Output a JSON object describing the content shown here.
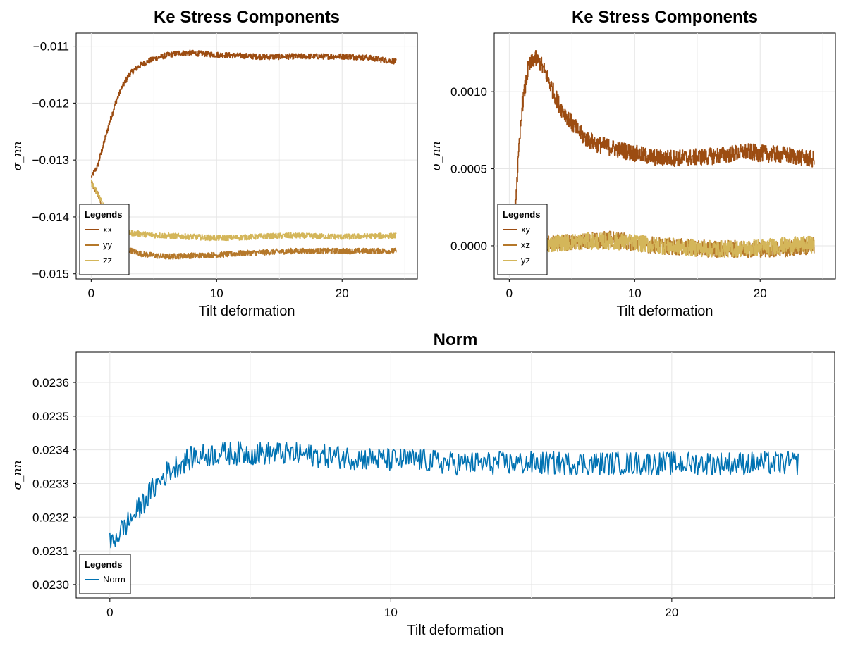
{
  "chart_data": [
    {
      "type": "line",
      "title": "Ke Stress Components",
      "xlabel": "Tilt deformation",
      "ylabel": "σ_nn",
      "xlim": [
        -1.2,
        26.0
      ],
      "ylim": [
        -0.01509,
        -0.01077
      ],
      "xticks": [
        0,
        10,
        20
      ],
      "xtick_labels": [
        "0",
        "10",
        "20"
      ],
      "yticks": [
        -0.015,
        -0.014,
        -0.013,
        -0.012,
        -0.011
      ],
      "ytick_labels": [
        "−0.015",
        "−0.014",
        "−0.013",
        "−0.012",
        "−0.011"
      ],
      "grid": true,
      "legend": {
        "title": "Legends",
        "position": "bottom-left"
      },
      "series": [
        {
          "name": "xx",
          "color": "#9c4c11",
          "x": [
            0,
            0.5,
            1,
            1.5,
            2,
            2.5,
            3,
            3.5,
            4,
            5,
            6,
            7,
            8,
            10,
            12,
            14,
            16,
            18,
            20,
            22,
            24.3
          ],
          "y": [
            -0.0133,
            -0.0131,
            -0.0127,
            -0.0123,
            -0.01195,
            -0.0117,
            -0.0115,
            -0.0114,
            -0.01132,
            -0.01122,
            -0.01116,
            -0.01112,
            -0.01112,
            -0.01115,
            -0.01117,
            -0.01119,
            -0.01118,
            -0.01118,
            -0.01118,
            -0.0112,
            -0.01127
          ]
        },
        {
          "name": "yy",
          "color": "#b5782a",
          "x": [
            0,
            0.5,
            1,
            1.5,
            2,
            2.5,
            3,
            4,
            5,
            6,
            8,
            10,
            12,
            14,
            16,
            18,
            20,
            22,
            24.3
          ],
          "y": [
            -0.0134,
            -0.0136,
            -0.0139,
            -0.0142,
            -0.0144,
            -0.0145,
            -0.01458,
            -0.01465,
            -0.01468,
            -0.0147,
            -0.01468,
            -0.01467,
            -0.01464,
            -0.01462,
            -0.0146,
            -0.0146,
            -0.0146,
            -0.0146,
            -0.0146
          ]
        },
        {
          "name": "zz",
          "color": "#d4b65a",
          "x": [
            0,
            0.5,
            1,
            1.5,
            2,
            2.5,
            3,
            4,
            5,
            6,
            8,
            10,
            12,
            14,
            16,
            18,
            20,
            22,
            24.3
          ],
          "y": [
            -0.0134,
            -0.0136,
            -0.0138,
            -0.01405,
            -0.0142,
            -0.01425,
            -0.01428,
            -0.0143,
            -0.01432,
            -0.01433,
            -0.01435,
            -0.01437,
            -0.01436,
            -0.01434,
            -0.01433,
            -0.01434,
            -0.01435,
            -0.01434,
            -0.01433
          ]
        }
      ]
    },
    {
      "type": "line",
      "title": "Ke Stress Components",
      "xlabel": "Tilt deformation",
      "ylabel": "σ_nn",
      "xlim": [
        -1.2,
        26.0
      ],
      "ylim": [
        -0.000215,
        0.00138
      ],
      "xticks": [
        0,
        10,
        20
      ],
      "xtick_labels": [
        "0",
        "10",
        "20"
      ],
      "yticks": [
        0,
        0.0005,
        0.001
      ],
      "ytick_labels": [
        "0.0000",
        "0.0005",
        "0.0010"
      ],
      "grid": true,
      "legend": {
        "title": "Legends",
        "position": "bottom-left"
      },
      "series": [
        {
          "name": "xy",
          "color": "#9c4c11",
          "x": [
            0.2,
            0.5,
            1,
            1.5,
            2,
            2.5,
            3,
            3.5,
            4,
            5,
            6,
            7,
            8,
            9,
            10,
            11,
            12,
            14,
            16,
            18,
            19,
            20,
            22,
            24.3
          ],
          "y": [
            -0.0001,
            0.0003,
            0.0009,
            0.00115,
            0.00122,
            0.00118,
            0.0011,
            0.001,
            0.00091,
            0.00079,
            0.0007,
            0.00066,
            0.00064,
            0.00062,
            0.0006,
            0.00058,
            0.00057,
            0.00057,
            0.00058,
            0.0006,
            0.00061,
            0.0006,
            0.00059,
            0.00056
          ]
        },
        {
          "name": "xz",
          "color": "#b5782a",
          "x": [
            0.2,
            1,
            2,
            4,
            6,
            8,
            10,
            12,
            14,
            16,
            18,
            20,
            22,
            24.3
          ],
          "y": [
            0.0,
            0.0,
            0.0,
            2e-05,
            3e-05,
            4e-05,
            2e-05,
            0.0,
            -1e-05,
            -2e-05,
            -2e-05,
            -2e-05,
            -2e-05,
            0.0
          ]
        },
        {
          "name": "yz",
          "color": "#d4b65a",
          "x": [
            0.2,
            1,
            2,
            4,
            6,
            8,
            10,
            12,
            14,
            16,
            18,
            20,
            22,
            24.3
          ],
          "y": [
            0.0,
            0.0,
            0.0,
            2e-05,
            3e-05,
            3e-05,
            2e-05,
            0.0,
            -1e-05,
            -2e-05,
            -2e-05,
            -1e-05,
            0.0,
            1e-05
          ]
        }
      ]
    },
    {
      "type": "line",
      "title": "Norm",
      "xlabel": "Tilt deformation",
      "ylabel": "σ_nn",
      "xlim": [
        -1.2,
        25.8
      ],
      "ylim": [
        0.02296,
        0.02369
      ],
      "xticks": [
        0,
        10,
        20
      ],
      "xtick_labels": [
        "0",
        "10",
        "20"
      ],
      "yticks": [
        0.023,
        0.0231,
        0.0232,
        0.0233,
        0.0234,
        0.0235,
        0.0236
      ],
      "ytick_labels": [
        "0.0230",
        "0.0231",
        "0.0232",
        "0.0233",
        "0.0234",
        "0.0235",
        "0.0236"
      ],
      "grid": true,
      "legend": {
        "title": "Legends",
        "position": "bottom-left"
      },
      "series": [
        {
          "name": "Norm",
          "color": "#0072b2",
          "x": [
            0,
            0.5,
            1,
            1.5,
            2,
            2.5,
            3,
            4,
            5,
            6,
            8,
            10,
            11,
            12,
            14,
            16,
            18,
            20,
            22,
            24.5
          ],
          "y": [
            0.02312,
            0.02317,
            0.02322,
            0.02328,
            0.02333,
            0.02336,
            0.02338,
            0.02339,
            0.02339,
            0.02339,
            0.02338,
            0.02337,
            0.02337,
            0.02336,
            0.02336,
            0.02336,
            0.02336,
            0.02336,
            0.02336,
            0.02336
          ]
        }
      ]
    }
  ]
}
